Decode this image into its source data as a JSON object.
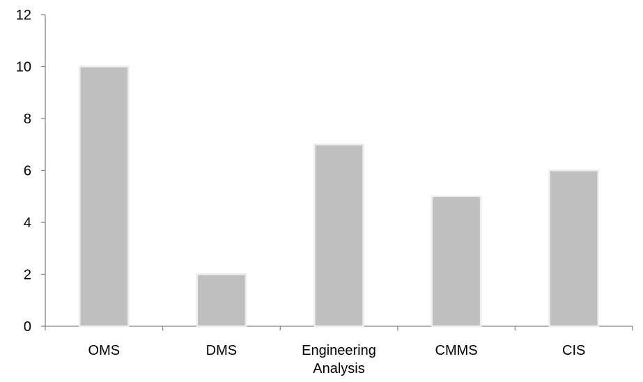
{
  "chart_data": {
    "type": "bar",
    "title": "",
    "xlabel": "",
    "ylabel": "",
    "categories": [
      "OMS",
      "DMS",
      "Engineering Analysis",
      "CMMS",
      "CIS"
    ],
    "category_lines": [
      [
        "OMS"
      ],
      [
        "DMS"
      ],
      [
        "Engineering",
        "Analysis"
      ],
      [
        "CMMS"
      ],
      [
        "CIS"
      ]
    ],
    "values": [
      10,
      2,
      7,
      5,
      6
    ],
    "ylim": [
      0,
      12
    ],
    "yticks": [
      0,
      2,
      4,
      6,
      8,
      10,
      12
    ],
    "ytick_labels": [
      "0",
      "2",
      "4",
      "6",
      "8",
      "10",
      "12"
    ],
    "bar_color": "#bfbfbf",
    "bar_edge_color": "#ececec",
    "axis_color": "#868686",
    "grid": false,
    "legend": "none"
  }
}
